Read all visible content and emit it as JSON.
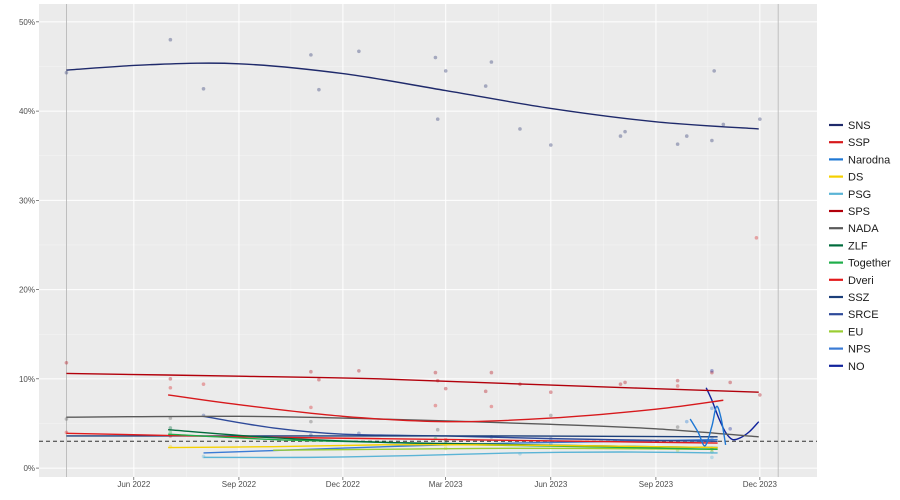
{
  "chart_data": {
    "type": "line",
    "title": "",
    "xlabel": "",
    "ylabel": "",
    "xlim": [
      "2022-03-10",
      "2024-01-20"
    ],
    "ylim": [
      -1,
      52
    ],
    "grid": true,
    "legend_position": "right",
    "threshold": 3,
    "x_ticks": [
      "2022-06-01",
      "2022-09-01",
      "2022-12-01",
      "2023-03-01",
      "2023-06-01",
      "2023-09-01",
      "2023-12-01"
    ],
    "x_tick_labels": [
      "Jun 2022",
      "Sep 2022",
      "Dec 2022",
      "Mar 2023",
      "Jun 2023",
      "Sep 2023",
      "Dec 2023"
    ],
    "y_ticks": [
      0,
      10,
      20,
      30,
      40,
      50
    ],
    "y_tick_labels": [
      "0%",
      "10%",
      "20%",
      "30%",
      "40%",
      "50%"
    ],
    "reference_lines": [
      "2022-04-03",
      "2023-12-17"
    ],
    "series": [
      {
        "name": "SNS",
        "color": "#1f2a6b",
        "trend": [
          [
            "2022-04-03",
            44.6
          ],
          [
            "2022-06-15",
            45.2
          ],
          [
            "2022-09-01",
            45.3
          ],
          [
            "2022-12-01",
            44.2
          ],
          [
            "2023-03-01",
            42.3
          ],
          [
            "2023-06-01",
            40.3
          ],
          [
            "2023-09-01",
            38.8
          ],
          [
            "2023-11-30",
            38.0
          ]
        ],
        "points": [
          [
            "2022-04-03",
            44.3
          ],
          [
            "2022-07-03",
            48.0
          ],
          [
            "2022-08-01",
            42.5
          ],
          [
            "2022-11-03",
            46.3
          ],
          [
            "2022-11-10",
            42.4
          ],
          [
            "2022-12-15",
            46.7
          ],
          [
            "2023-02-20",
            46.0
          ],
          [
            "2023-02-22",
            39.1
          ],
          [
            "2023-03-01",
            44.5
          ],
          [
            "2023-04-05",
            42.8
          ],
          [
            "2023-04-10",
            45.5
          ],
          [
            "2023-05-05",
            38.0
          ],
          [
            "2023-06-01",
            36.2
          ],
          [
            "2023-08-01",
            37.2
          ],
          [
            "2023-08-05",
            37.7
          ],
          [
            "2023-09-20",
            36.3
          ],
          [
            "2023-09-28",
            37.2
          ],
          [
            "2023-10-20",
            36.7
          ],
          [
            "2023-10-22",
            44.5
          ],
          [
            "2023-10-30",
            38.5
          ],
          [
            "2023-12-01",
            39.1
          ]
        ]
      },
      {
        "name": "SSP",
        "color": "#d7191c",
        "trend": [
          [
            "2022-07-01",
            8.2
          ],
          [
            "2022-09-01",
            7.1
          ],
          [
            "2022-12-01",
            5.8
          ],
          [
            "2023-03-01",
            5.2
          ],
          [
            "2023-06-01",
            5.6
          ],
          [
            "2023-09-01",
            6.6
          ],
          [
            "2023-10-30",
            7.6
          ]
        ],
        "points": [
          [
            "2022-07-03",
            9.0
          ],
          [
            "2022-08-01",
            9.4
          ],
          [
            "2022-11-03",
            6.8
          ],
          [
            "2023-02-20",
            7.0
          ],
          [
            "2023-04-10",
            6.9
          ],
          [
            "2023-09-20",
            9.2
          ],
          [
            "2023-11-28",
            25.8
          ]
        ]
      },
      {
        "name": "Narodna",
        "color": "#1f78d4",
        "trend": [
          [
            "2023-10-01",
            5.5
          ],
          [
            "2023-10-08",
            4.0
          ],
          [
            "2023-10-14",
            2.5
          ],
          [
            "2023-10-20",
            4.7
          ],
          [
            "2023-10-24",
            6.9
          ],
          [
            "2023-10-28",
            5.6
          ],
          [
            "2023-11-01",
            2.6
          ]
        ],
        "points": [
          [
            "2023-09-28",
            5.2
          ],
          [
            "2023-10-20",
            6.7
          ]
        ]
      },
      {
        "name": "DS",
        "color": "#f5d000",
        "trend": [
          [
            "2022-07-01",
            2.3
          ],
          [
            "2022-10-01",
            2.4
          ],
          [
            "2023-01-01",
            2.6
          ],
          [
            "2023-04-01",
            2.6
          ],
          [
            "2023-07-01",
            2.5
          ],
          [
            "2023-10-25",
            2.3
          ]
        ],
        "points": [
          [
            "2022-07-03",
            2.4
          ],
          [
            "2023-03-01",
            2.6
          ],
          [
            "2023-10-20",
            2.1
          ]
        ]
      },
      {
        "name": "PSG",
        "color": "#5ab4d6",
        "trend": [
          [
            "2022-08-01",
            1.2
          ],
          [
            "2022-11-01",
            1.2
          ],
          [
            "2023-02-01",
            1.4
          ],
          [
            "2023-05-01",
            1.7
          ],
          [
            "2023-08-01",
            1.8
          ],
          [
            "2023-10-25",
            1.7
          ]
        ],
        "points": [
          [
            "2022-08-01",
            1.3
          ],
          [
            "2023-05-05",
            1.6
          ],
          [
            "2023-10-20",
            1.2
          ]
        ]
      },
      {
        "name": "SPS",
        "color": "#b2000b",
        "trend": [
          [
            "2022-04-03",
            10.6
          ],
          [
            "2022-09-01",
            10.3
          ],
          [
            "2023-01-01",
            10.0
          ],
          [
            "2023-06-01",
            9.3
          ],
          [
            "2023-11-30",
            8.5
          ]
        ],
        "points": [
          [
            "2022-04-03",
            11.8
          ],
          [
            "2022-07-03",
            10.0
          ],
          [
            "2022-11-03",
            10.8
          ],
          [
            "2022-11-10",
            9.9
          ],
          [
            "2022-12-15",
            10.9
          ],
          [
            "2023-02-20",
            10.7
          ],
          [
            "2023-02-22",
            9.8
          ],
          [
            "2023-03-01",
            8.9
          ],
          [
            "2023-04-05",
            8.6
          ],
          [
            "2023-04-10",
            10.7
          ],
          [
            "2023-05-05",
            9.4
          ],
          [
            "2023-06-01",
            8.5
          ],
          [
            "2023-08-01",
            9.4
          ],
          [
            "2023-08-05",
            9.6
          ],
          [
            "2023-09-20",
            9.8
          ],
          [
            "2023-10-20",
            10.7
          ],
          [
            "2023-11-05",
            9.6
          ],
          [
            "2023-12-01",
            8.2
          ]
        ]
      },
      {
        "name": "NADA",
        "color": "#5a5a5a",
        "trend": [
          [
            "2022-04-03",
            5.7
          ],
          [
            "2022-09-01",
            5.8
          ],
          [
            "2023-01-01",
            5.5
          ],
          [
            "2023-06-01",
            4.9
          ],
          [
            "2023-09-01",
            4.4
          ],
          [
            "2023-11-30",
            3.5
          ]
        ],
        "points": [
          [
            "2022-04-03",
            5.5
          ],
          [
            "2022-07-03",
            5.6
          ],
          [
            "2022-11-03",
            5.2
          ],
          [
            "2023-02-22",
            4.3
          ],
          [
            "2023-06-01",
            5.9
          ],
          [
            "2023-09-20",
            4.6
          ],
          [
            "2023-10-20",
            3.1
          ]
        ]
      },
      {
        "name": "ZLF",
        "color": "#006b3c",
        "trend": [
          [
            "2022-07-01",
            4.3
          ],
          [
            "2022-10-01",
            3.4
          ],
          [
            "2023-01-01",
            2.9
          ],
          [
            "2023-04-01",
            2.7
          ],
          [
            "2023-07-01",
            2.5
          ],
          [
            "2023-10-25",
            2.3
          ]
        ],
        "points": [
          [
            "2022-07-03",
            4.5
          ],
          [
            "2023-03-01",
            3.0
          ],
          [
            "2023-10-20",
            2.2
          ]
        ]
      },
      {
        "name": "Together",
        "color": "#1fae4a",
        "trend": [
          [
            "2022-07-01",
            3.8
          ],
          [
            "2022-10-01",
            3.2
          ],
          [
            "2023-01-01",
            2.9
          ],
          [
            "2023-04-01",
            2.6
          ],
          [
            "2023-07-01",
            2.4
          ],
          [
            "2023-10-25",
            2.1
          ]
        ],
        "points": [
          [
            "2022-07-03",
            4.0
          ],
          [
            "2023-02-20",
            3.3
          ],
          [
            "2023-10-20",
            1.8
          ]
        ]
      },
      {
        "name": "Dveri",
        "color": "#e31a1c",
        "trend": [
          [
            "2022-04-03",
            3.9
          ],
          [
            "2022-09-01",
            3.5
          ],
          [
            "2023-01-01",
            3.3
          ],
          [
            "2023-05-01",
            3.1
          ],
          [
            "2023-10-25",
            2.8
          ]
        ],
        "points": [
          [
            "2022-04-03",
            4.0
          ],
          [
            "2022-07-03",
            3.6
          ],
          [
            "2023-03-01",
            3.2
          ]
        ]
      },
      {
        "name": "SSZ",
        "color": "#1c3f7a",
        "trend": [
          [
            "2022-04-03",
            3.6
          ],
          [
            "2022-09-01",
            3.6
          ],
          [
            "2023-01-01",
            3.6
          ],
          [
            "2023-05-01",
            3.6
          ],
          [
            "2023-10-25",
            3.5
          ]
        ],
        "points": [
          [
            "2022-11-03",
            3.7
          ],
          [
            "2023-04-10",
            3.5
          ]
        ]
      },
      {
        "name": "SRCE",
        "color": "#2e4a9a",
        "trend": [
          [
            "2022-08-01",
            5.8
          ],
          [
            "2022-10-01",
            4.5
          ],
          [
            "2022-12-01",
            3.8
          ],
          [
            "2023-03-01",
            3.6
          ],
          [
            "2023-06-01",
            3.3
          ],
          [
            "2023-10-25",
            3.0
          ]
        ],
        "points": [
          [
            "2022-08-01",
            5.9
          ],
          [
            "2022-12-15",
            3.9
          ],
          [
            "2023-06-01",
            3.3
          ]
        ]
      },
      {
        "name": "EU",
        "color": "#9acd32",
        "trend": [
          [
            "2022-10-01",
            2.0
          ],
          [
            "2023-01-01",
            2.1
          ],
          [
            "2023-04-01",
            2.2
          ],
          [
            "2023-07-01",
            2.2
          ],
          [
            "2023-10-25",
            2.1
          ]
        ],
        "points": [
          [
            "2023-03-01",
            2.2
          ],
          [
            "2023-09-20",
            2.0
          ]
        ]
      },
      {
        "name": "NPS",
        "color": "#3a7bd5",
        "trend": [
          [
            "2022-08-01",
            1.7
          ],
          [
            "2022-11-01",
            2.1
          ],
          [
            "2023-02-01",
            2.5
          ],
          [
            "2023-05-01",
            2.8
          ],
          [
            "2023-08-01",
            3.0
          ],
          [
            "2023-10-25",
            3.2
          ]
        ],
        "points": [
          [
            "2023-06-01",
            2.7
          ],
          [
            "2023-10-20",
            3.4
          ]
        ]
      },
      {
        "name": "NO",
        "color": "#11239c",
        "trend": [
          [
            "2023-10-15",
            9.0
          ],
          [
            "2023-10-20",
            7.6
          ],
          [
            "2023-10-26",
            5.6
          ],
          [
            "2023-11-01",
            4.0
          ],
          [
            "2023-11-07",
            3.2
          ],
          [
            "2023-11-14",
            3.4
          ],
          [
            "2023-11-22",
            4.1
          ],
          [
            "2023-11-30",
            5.2
          ]
        ],
        "points": [
          [
            "2023-10-20",
            10.9
          ],
          [
            "2023-11-05",
            4.4
          ]
        ]
      }
    ]
  }
}
